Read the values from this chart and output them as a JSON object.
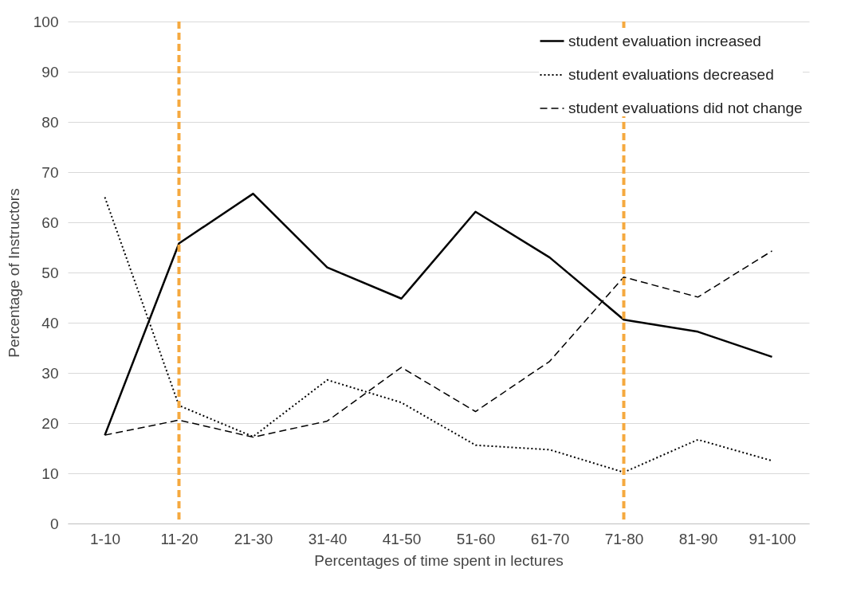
{
  "chart_data": {
    "type": "line",
    "xlabel": "Percentages of time spent in lectures",
    "ylabel": "Percentage of Instructors",
    "categories": [
      "1-10",
      "11-20",
      "21-30",
      "31-40",
      "41-50",
      "51-60",
      "61-70",
      "71-80",
      "81-90",
      "91-100"
    ],
    "ylim": [
      0,
      100
    ],
    "yticks": [
      0,
      10,
      20,
      30,
      40,
      50,
      60,
      70,
      80,
      90,
      100
    ],
    "series": [
      {
        "name": "student evaluation increased",
        "color": "#000000",
        "line_style": "solid",
        "values": [
          17.6,
          55.8,
          65.7,
          51,
          44.8,
          62.1,
          53,
          40.6,
          38.2,
          33.2
        ]
      },
      {
        "name": "student evaluations decreased",
        "color": "#000000",
        "line_style": "dotted",
        "values": [
          65,
          23.5,
          17.3,
          28.6,
          24.1,
          15.6,
          14.7,
          10.2,
          16.7,
          12.5
        ]
      },
      {
        "name": "student evaluations did not change",
        "color": "#000000",
        "line_style": "dashed",
        "values": [
          17.6,
          20.6,
          17.2,
          20.4,
          31.1,
          22.3,
          32.3,
          49.1,
          45.1,
          54.3
        ]
      }
    ],
    "ref_lines": [
      {
        "axis": "x",
        "value": "11-20",
        "color": "#f5a93f",
        "line_style": "dashed"
      },
      {
        "axis": "x",
        "value": "71-80",
        "color": "#f5a93f",
        "line_style": "dashed"
      }
    ],
    "grid": "y",
    "legend": "top right"
  }
}
